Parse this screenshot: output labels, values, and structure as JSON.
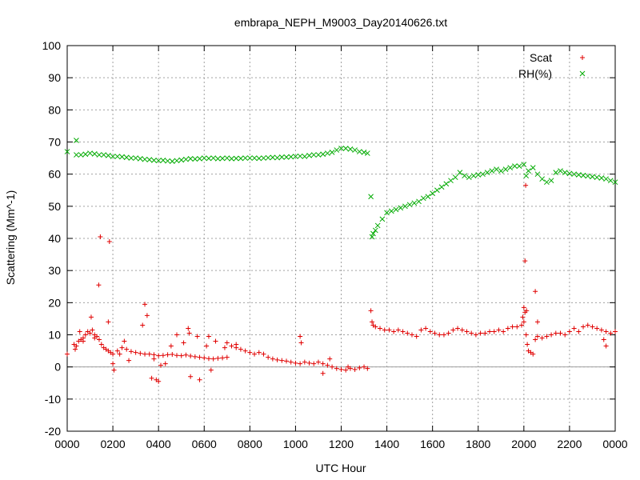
{
  "chart_data": {
    "type": "scatter",
    "title": "embrapa_NEPH_M9003_Day20140626.txt",
    "xlabel": "UTC Hour",
    "ylabel": "Scattering (Mm^-1)",
    "xlim": [
      0,
      24
    ],
    "ylim": [
      -20,
      100
    ],
    "x_ticks": [
      0,
      2,
      4,
      6,
      8,
      10,
      12,
      14,
      16,
      18,
      20,
      22,
      24
    ],
    "x_tick_labels": [
      "0000",
      "0200",
      "0400",
      "0600",
      "0800",
      "1000",
      "1200",
      "1400",
      "1600",
      "1800",
      "2000",
      "2200",
      "0000"
    ],
    "y_ticks": [
      -20,
      -10,
      0,
      10,
      20,
      30,
      40,
      50,
      60,
      70,
      80,
      90,
      100
    ],
    "y_tick_labels": [
      "-20",
      "-10",
      "0",
      "10",
      "20",
      "30",
      "40",
      "50",
      "60",
      "70",
      "80",
      "90",
      "100"
    ],
    "grid": true,
    "legend": "top-right",
    "series": [
      {
        "name": "Scat",
        "marker": "plus",
        "color": "#e00000",
        "points": [
          [
            0.0,
            4.0
          ],
          [
            0.3,
            7.0
          ],
          [
            0.35,
            5.5
          ],
          [
            0.4,
            6.5
          ],
          [
            0.5,
            8.0
          ],
          [
            0.6,
            8.5
          ],
          [
            0.7,
            9.0
          ],
          [
            0.8,
            10.0
          ],
          [
            0.9,
            11.0
          ],
          [
            1.0,
            10.5
          ],
          [
            1.1,
            11.5
          ],
          [
            1.2,
            10.0
          ],
          [
            1.3,
            9.5
          ],
          [
            1.4,
            8.5
          ],
          [
            1.5,
            7.0
          ],
          [
            1.6,
            6.0
          ],
          [
            1.7,
            5.5
          ],
          [
            1.8,
            5.0
          ],
          [
            1.9,
            4.5
          ],
          [
            2.0,
            4.0
          ],
          [
            2.2,
            5.0
          ],
          [
            2.4,
            6.0
          ],
          [
            2.6,
            5.5
          ],
          [
            2.8,
            4.8
          ],
          [
            3.0,
            4.5
          ],
          [
            3.2,
            4.2
          ],
          [
            3.4,
            4.0
          ],
          [
            3.6,
            4.0
          ],
          [
            3.8,
            3.8
          ],
          [
            4.0,
            3.5
          ],
          [
            4.2,
            3.6
          ],
          [
            4.4,
            3.8
          ],
          [
            4.6,
            3.9
          ],
          [
            4.8,
            3.6
          ],
          [
            5.0,
            3.5
          ],
          [
            5.2,
            3.7
          ],
          [
            5.4,
            3.4
          ],
          [
            5.6,
            3.2
          ],
          [
            5.8,
            3.0
          ],
          [
            6.0,
            2.8
          ],
          [
            6.2,
            2.6
          ],
          [
            6.4,
            2.5
          ],
          [
            6.6,
            2.7
          ],
          [
            6.8,
            2.8
          ],
          [
            7.0,
            3.0
          ],
          [
            7.2,
            6.5
          ],
          [
            7.4,
            6.0
          ],
          [
            7.6,
            5.5
          ],
          [
            7.8,
            5.0
          ],
          [
            8.0,
            4.5
          ],
          [
            8.2,
            4.0
          ],
          [
            8.4,
            4.5
          ],
          [
            8.6,
            4.0
          ],
          [
            8.8,
            3.0
          ],
          [
            9.0,
            2.5
          ],
          [
            9.2,
            2.2
          ],
          [
            9.4,
            2.0
          ],
          [
            9.6,
            1.8
          ],
          [
            9.8,
            1.5
          ],
          [
            10.0,
            1.2
          ],
          [
            10.2,
            1.0
          ],
          [
            10.4,
            1.5
          ],
          [
            10.6,
            1.2
          ],
          [
            10.8,
            1.0
          ],
          [
            11.0,
            1.5
          ],
          [
            11.2,
            1.0
          ],
          [
            11.4,
            0.5
          ],
          [
            11.6,
            0.0
          ],
          [
            11.8,
            -0.5
          ],
          [
            12.0,
            -0.8
          ],
          [
            12.2,
            -1.0
          ],
          [
            12.4,
            -0.5
          ],
          [
            12.6,
            -0.8
          ],
          [
            12.8,
            -0.3
          ],
          [
            13.0,
            0.0
          ],
          [
            13.15,
            -0.5
          ],
          [
            13.3,
            17.5
          ],
          [
            13.35,
            14.0
          ],
          [
            13.4,
            13.0
          ],
          [
            13.5,
            12.5
          ],
          [
            13.7,
            12.0
          ],
          [
            13.9,
            11.5
          ],
          [
            14.1,
            11.5
          ],
          [
            14.3,
            11.0
          ],
          [
            14.5,
            11.5
          ],
          [
            14.7,
            11.0
          ],
          [
            14.9,
            10.5
          ],
          [
            15.1,
            10.0
          ],
          [
            15.3,
            9.5
          ],
          [
            15.5,
            11.5
          ],
          [
            15.7,
            12.0
          ],
          [
            15.9,
            11.0
          ],
          [
            16.1,
            10.5
          ],
          [
            16.3,
            10.0
          ],
          [
            16.5,
            10.0
          ],
          [
            16.7,
            10.5
          ],
          [
            16.9,
            11.5
          ],
          [
            17.1,
            12.0
          ],
          [
            17.3,
            11.5
          ],
          [
            17.5,
            11.0
          ],
          [
            17.7,
            10.5
          ],
          [
            17.9,
            10.0
          ],
          [
            18.1,
            10.5
          ],
          [
            18.3,
            10.5
          ],
          [
            18.5,
            11.0
          ],
          [
            18.7,
            11.0
          ],
          [
            18.9,
            11.5
          ],
          [
            19.1,
            11.0
          ],
          [
            19.3,
            12.0
          ],
          [
            19.5,
            12.5
          ],
          [
            19.7,
            12.5
          ],
          [
            19.9,
            13.0
          ],
          [
            20.0,
            14.0
          ],
          [
            20.05,
            17.0
          ],
          [
            20.1,
            10.0
          ],
          [
            20.15,
            7.0
          ],
          [
            20.2,
            5.0
          ],
          [
            20.3,
            4.5
          ],
          [
            20.4,
            4.0
          ],
          [
            20.5,
            8.5
          ],
          [
            20.6,
            9.5
          ],
          [
            20.8,
            9.0
          ],
          [
            21.0,
            9.5
          ],
          [
            21.2,
            10.0
          ],
          [
            21.4,
            10.5
          ],
          [
            21.6,
            10.5
          ],
          [
            21.8,
            10.0
          ],
          [
            22.0,
            11.0
          ],
          [
            22.2,
            12.0
          ],
          [
            22.4,
            11.0
          ],
          [
            22.6,
            12.5
          ],
          [
            22.8,
            13.0
          ],
          [
            23.0,
            12.5
          ],
          [
            23.2,
            12.0
          ],
          [
            23.4,
            11.5
          ],
          [
            23.6,
            11.0
          ],
          [
            23.8,
            10.5
          ],
          [
            24.0,
            11.0
          ],
          [
            0.55,
            11.0
          ],
          [
            0.7,
            8.0
          ],
          [
            1.05,
            15.5
          ],
          [
            1.2,
            9.0
          ],
          [
            1.38,
            25.5
          ],
          [
            1.45,
            40.5
          ],
          [
            1.85,
            39.0
          ],
          [
            1.8,
            14.0
          ],
          [
            2.0,
            1.0
          ],
          [
            2.05,
            -1.0
          ],
          [
            2.3,
            4.0
          ],
          [
            2.5,
            8.0
          ],
          [
            2.7,
            2.0
          ],
          [
            3.3,
            13.0
          ],
          [
            3.4,
            19.5
          ],
          [
            3.5,
            16.0
          ],
          [
            3.7,
            -3.5
          ],
          [
            3.8,
            2.5
          ],
          [
            3.9,
            -4.0
          ],
          [
            4.0,
            -4.5
          ],
          [
            4.1,
            0.5
          ],
          [
            4.3,
            1.0
          ],
          [
            4.55,
            6.5
          ],
          [
            4.8,
            10.0
          ],
          [
            5.1,
            7.5
          ],
          [
            5.3,
            12.0
          ],
          [
            5.35,
            10.5
          ],
          [
            5.4,
            -3.0
          ],
          [
            5.7,
            9.5
          ],
          [
            5.8,
            -4.0
          ],
          [
            6.1,
            6.5
          ],
          [
            6.2,
            9.5
          ],
          [
            6.3,
            -1.0
          ],
          [
            6.5,
            8.0
          ],
          [
            6.9,
            6.0
          ],
          [
            7.0,
            7.5
          ],
          [
            7.4,
            7.0
          ],
          [
            10.2,
            9.5
          ],
          [
            10.25,
            7.5
          ],
          [
            11.2,
            -2.0
          ],
          [
            11.5,
            2.5
          ],
          [
            12.3,
            0.0
          ],
          [
            19.95,
            15.5
          ],
          [
            20.0,
            18.5
          ],
          [
            20.05,
            33.0
          ],
          [
            20.08,
            56.5
          ],
          [
            20.12,
            17.5
          ],
          [
            20.5,
            23.5
          ],
          [
            20.6,
            14.0
          ],
          [
            23.5,
            8.5
          ],
          [
            23.6,
            6.5
          ]
        ]
      },
      {
        "name": "RH(%)",
        "marker": "cross",
        "color": "#00aa00",
        "points": [
          [
            0.0,
            67.0
          ],
          [
            0.4,
            70.5
          ],
          [
            0.4,
            66.0
          ],
          [
            0.6,
            66.0
          ],
          [
            0.8,
            66.2
          ],
          [
            1.0,
            66.5
          ],
          [
            1.2,
            66.3
          ],
          [
            1.4,
            66.0
          ],
          [
            1.6,
            66.0
          ],
          [
            1.8,
            65.8
          ],
          [
            2.0,
            65.5
          ],
          [
            2.2,
            65.5
          ],
          [
            2.4,
            65.4
          ],
          [
            2.6,
            65.2
          ],
          [
            2.8,
            65.0
          ],
          [
            3.0,
            65.0
          ],
          [
            3.2,
            64.8
          ],
          [
            3.4,
            64.6
          ],
          [
            3.6,
            64.5
          ],
          [
            3.8,
            64.3
          ],
          [
            4.0,
            64.2
          ],
          [
            4.2,
            64.3
          ],
          [
            4.4,
            64.1
          ],
          [
            4.6,
            64.0
          ],
          [
            4.8,
            64.2
          ],
          [
            5.0,
            64.4
          ],
          [
            5.2,
            64.6
          ],
          [
            5.4,
            64.8
          ],
          [
            5.6,
            64.7
          ],
          [
            5.8,
            64.8
          ],
          [
            6.0,
            65.0
          ],
          [
            6.2,
            64.9
          ],
          [
            6.4,
            65.0
          ],
          [
            6.6,
            64.8
          ],
          [
            6.8,
            64.9
          ],
          [
            7.0,
            65.0
          ],
          [
            7.2,
            64.8
          ],
          [
            7.4,
            64.9
          ],
          [
            7.6,
            64.9
          ],
          [
            7.8,
            65.0
          ],
          [
            8.0,
            65.0
          ],
          [
            8.2,
            65.0
          ],
          [
            8.4,
            64.9
          ],
          [
            8.6,
            65.0
          ],
          [
            8.8,
            65.1
          ],
          [
            9.0,
            65.2
          ],
          [
            9.2,
            65.1
          ],
          [
            9.4,
            65.3
          ],
          [
            9.6,
            65.3
          ],
          [
            9.8,
            65.4
          ],
          [
            10.0,
            65.5
          ],
          [
            10.2,
            65.6
          ],
          [
            10.4,
            65.5
          ],
          [
            10.6,
            65.8
          ],
          [
            10.8,
            66.0
          ],
          [
            11.0,
            66.0
          ],
          [
            11.2,
            66.2
          ],
          [
            11.4,
            66.5
          ],
          [
            11.6,
            66.8
          ],
          [
            11.8,
            67.5
          ],
          [
            12.0,
            68.0
          ],
          [
            12.2,
            68.0
          ],
          [
            12.4,
            67.8
          ],
          [
            12.6,
            67.5
          ],
          [
            12.8,
            67.0
          ],
          [
            13.0,
            66.8
          ],
          [
            13.15,
            66.5
          ],
          [
            13.3,
            53.0
          ],
          [
            13.35,
            40.5
          ],
          [
            13.4,
            41.5
          ],
          [
            13.5,
            42.5
          ],
          [
            13.6,
            44.0
          ],
          [
            13.8,
            46.0
          ],
          [
            14.0,
            48.0
          ],
          [
            14.2,
            48.5
          ],
          [
            14.4,
            49.0
          ],
          [
            14.6,
            49.5
          ],
          [
            14.8,
            50.0
          ],
          [
            15.0,
            50.5
          ],
          [
            15.2,
            51.0
          ],
          [
            15.4,
            51.5
          ],
          [
            15.6,
            52.5
          ],
          [
            15.8,
            53.0
          ],
          [
            16.0,
            54.0
          ],
          [
            16.2,
            55.0
          ],
          [
            16.4,
            56.0
          ],
          [
            16.6,
            57.0
          ],
          [
            16.8,
            58.0
          ],
          [
            17.0,
            59.0
          ],
          [
            17.2,
            60.5
          ],
          [
            17.4,
            59.5
          ],
          [
            17.6,
            59.0
          ],
          [
            17.8,
            59.5
          ],
          [
            18.0,
            59.8
          ],
          [
            18.2,
            60.0
          ],
          [
            18.4,
            60.5
          ],
          [
            18.6,
            61.0
          ],
          [
            18.8,
            61.5
          ],
          [
            19.0,
            61.0
          ],
          [
            19.2,
            61.5
          ],
          [
            19.4,
            62.0
          ],
          [
            19.6,
            62.5
          ],
          [
            19.8,
            62.5
          ],
          [
            20.0,
            63.0
          ],
          [
            20.1,
            59.5
          ],
          [
            20.2,
            61.0
          ],
          [
            20.4,
            62.0
          ],
          [
            20.6,
            60.0
          ],
          [
            20.8,
            58.5
          ],
          [
            21.0,
            57.5
          ],
          [
            21.2,
            58.0
          ],
          [
            21.4,
            60.5
          ],
          [
            21.6,
            61.0
          ],
          [
            21.8,
            60.5
          ],
          [
            22.0,
            60.2
          ],
          [
            22.2,
            60.0
          ],
          [
            22.4,
            59.8
          ],
          [
            22.6,
            59.6
          ],
          [
            22.8,
            59.4
          ],
          [
            23.0,
            59.2
          ],
          [
            23.2,
            59.0
          ],
          [
            23.4,
            58.8
          ],
          [
            23.6,
            58.5
          ],
          [
            23.8,
            58.0
          ],
          [
            24.0,
            57.5
          ]
        ]
      }
    ]
  }
}
